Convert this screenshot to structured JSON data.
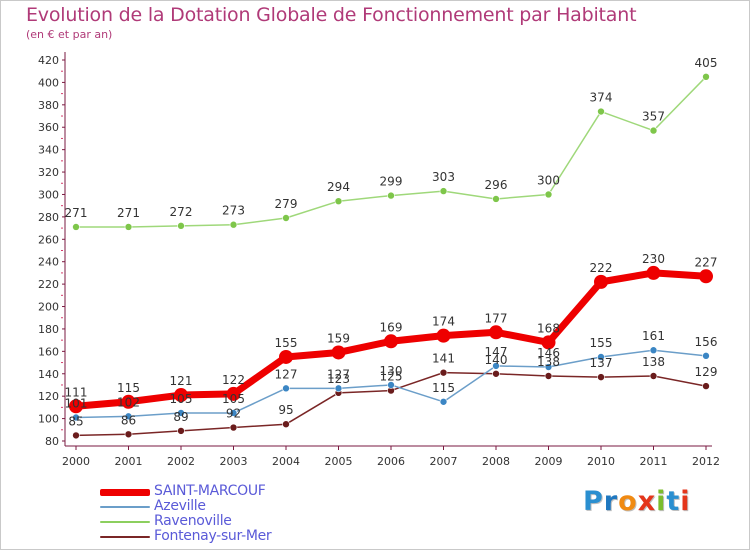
{
  "chart_data": {
    "type": "line",
    "title": "Evolution de la Dotation Globale de Fonctionnement par Habitant",
    "subtitle": "(en € et par an)",
    "xlabel": "",
    "ylabel": "",
    "ylim": [
      80,
      420
    ],
    "yticks": [
      80,
      100,
      120,
      140,
      160,
      180,
      200,
      220,
      240,
      260,
      280,
      300,
      320,
      340,
      360,
      380,
      400,
      420
    ],
    "grid": false,
    "legend_position": "bottom-left",
    "categories": [
      "2000",
      "2001",
      "2002",
      "2003",
      "2004",
      "2005",
      "2006",
      "2007",
      "2008",
      "2009",
      "2010",
      "2011",
      "2012"
    ],
    "series": [
      {
        "name": "SAINT-MARCOUF",
        "color": "#ee0000",
        "values": [
          111,
          115,
          121,
          122,
          155,
          159,
          169,
          174,
          177,
          168,
          222,
          230,
          227
        ]
      },
      {
        "name": "Azeville",
        "color": "#6b9ec9",
        "values": [
          101,
          102,
          105,
          105,
          127,
          127,
          130,
          115,
          147,
          146,
          155,
          161,
          156
        ]
      },
      {
        "name": "Ravenoville",
        "color": "#8ccf5e",
        "values": [
          271,
          271,
          272,
          273,
          279,
          294,
          299,
          303,
          296,
          300,
          374,
          357,
          405
        ]
      },
      {
        "name": "Fontenay-sur-Mer",
        "color": "#7a2626",
        "values": [
          85,
          86,
          89,
          92,
          95,
          123,
          125,
          141,
          140,
          138,
          137,
          138,
          129
        ]
      }
    ]
  },
  "logo": {
    "letters": [
      "P",
      "r",
      "o",
      "x",
      "i",
      "t",
      "i"
    ],
    "colors": [
      "#2a8fd0",
      "#1f78c0",
      "#f08a12",
      "#e4351b",
      "#7cbd2c",
      "#2a8fd0",
      "#e4351b"
    ]
  }
}
